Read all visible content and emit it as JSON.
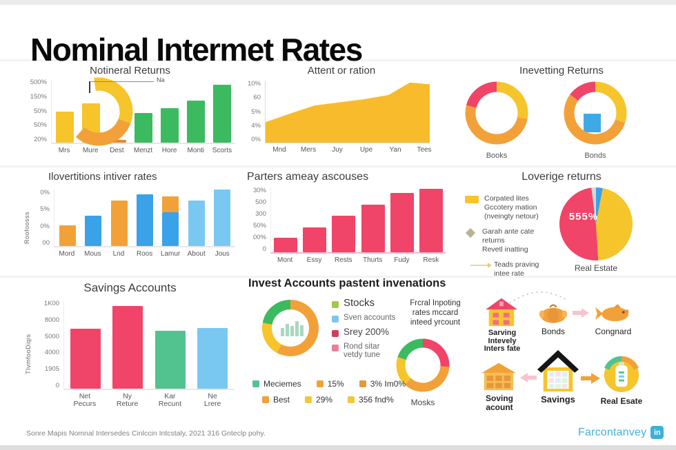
{
  "page": {
    "title": "Nominal Intermet Rates",
    "footer": {
      "source": "Sonre Mapis Nomnal Intersedes Cinlccin Intcstaly, 2021 316 Gnteclp pohy.",
      "brand": "Farcontanvey",
      "brand_badge": "in"
    }
  },
  "colors": {
    "yellow": "#F6C52C",
    "orange": "#F2A138",
    "deep_orange": "#E2873A",
    "green": "#3CBA60",
    "teal_green": "#52C28F",
    "blue": "#3AA2E8",
    "light_blue": "#79C8F2",
    "pink": "#F04568",
    "area_yellow": "#F8BB2B",
    "crimson": "#D23E5E",
    "rose": "#EA8098",
    "lime": "#A3C84A",
    "gray_diamond": "#B9B29B",
    "light_gray": "#D8D8D8",
    "brand_blue": "#41B4D9"
  },
  "chart_data": [
    {
      "id": "notineral",
      "type": "bar",
      "title": "Notineral Returns",
      "yticks": [
        "500%",
        "150%",
        "50%",
        "50%",
        "20%"
      ],
      "categories": [
        "Mrs",
        "Mure",
        "Dest",
        "Menzt",
        "Hore",
        "Monti",
        "Scorts"
      ],
      "values": [
        49,
        62,
        4,
        47,
        54,
        66,
        91
      ],
      "bar_colors": [
        "yellow",
        "yellow",
        "deep_orange",
        "green",
        "green",
        "green",
        "green"
      ],
      "annotation": "Na",
      "overlay": {
        "shape": "donut-arc",
        "segments": [
          {
            "color": "yellow",
            "deg": 118
          },
          {
            "color": "orange",
            "deg": 112
          }
        ]
      }
    },
    {
      "id": "attent",
      "type": "area",
      "title": "Attent or ration",
      "yticks": [
        "10%",
        "60",
        "5%",
        "4%",
        "0%"
      ],
      "categories": [
        "Mnd",
        "Mers",
        "Juy",
        "Upe",
        "Yan",
        "Tees"
      ],
      "points_x": [
        0,
        15,
        30,
        45,
        60,
        75,
        88,
        100
      ],
      "points_h": [
        33,
        47,
        60,
        65,
        70,
        77,
        97,
        94
      ],
      "color": "area_yellow"
    },
    {
      "id": "inevetting",
      "type": "donut-pair",
      "title": "Inevetting Returns",
      "donuts": [
        {
          "label": "Books",
          "segments": [
            {
              "color": "yellow",
              "value": 28
            },
            {
              "color": "orange",
              "value": 51
            },
            {
              "color": "pink",
              "value": 21
            }
          ]
        },
        {
          "label": "Bonds",
          "segments": [
            {
              "color": "yellow",
              "value": 30
            },
            {
              "color": "orange",
              "value": 55
            },
            {
              "color": "pink",
              "value": 15
            }
          ],
          "inner_marker": "blue-square"
        }
      ]
    },
    {
      "id": "ilovertitions",
      "type": "bar",
      "title": "Ilovertitions intiver rates",
      "ylabel": "Roofoosss",
      "yticks": [
        "0%",
        "5%",
        "0%",
        "00"
      ],
      "categories": [
        "Mord",
        "Mous",
        "Lnd",
        "Roos",
        "Lamur",
        "About",
        "Jous"
      ],
      "values": [
        37,
        54,
        80,
        91,
        60,
        80,
        100
      ],
      "stack_values": [
        0,
        0,
        0,
        0,
        28,
        0,
        0
      ],
      "bar_colors": [
        "orange",
        "blue",
        "orange",
        "blue",
        "blue",
        "light_blue",
        "light_blue"
      ],
      "stack_colors": [
        "",
        "",
        "",
        "",
        "orange",
        "",
        ""
      ]
    },
    {
      "id": "parters",
      "type": "bar",
      "title": "Parters ameay ascouses",
      "yticks": [
        "30%",
        "500",
        "300",
        "50%",
        "00%",
        "0"
      ],
      "categories": [
        "Mont",
        "Essy",
        "Rests",
        "Thurts",
        "Fudy",
        "Resk"
      ],
      "values": [
        22,
        38,
        56,
        73,
        91,
        98
      ],
      "bar_colors": [
        "pink",
        "pink",
        "pink",
        "pink",
        "pink",
        "pink"
      ]
    },
    {
      "id": "loverige",
      "type": "pie",
      "title": "Loverige returns",
      "legend": [
        {
          "marker": "square",
          "color": "#F6C52C",
          "lines": [
            "Corpated lites",
            "Gccotery mation",
            "(nveingty netour)"
          ]
        },
        {
          "marker": "diamond",
          "color": "#B9B29B",
          "lines": [
            "Garah ante cate",
            "returns",
            "Revetl inatting"
          ]
        },
        {
          "marker": "line",
          "color": "#EAD98C",
          "lines": [
            "Teads praving",
            "intee rate"
          ]
        }
      ],
      "segments": [
        {
          "color": "blue",
          "value": 3
        },
        {
          "color": "yellow",
          "value": 46
        },
        {
          "color": "pink",
          "value": 49
        },
        {
          "color": "light_gray",
          "value": 2
        }
      ],
      "center_label": "555%",
      "caption": "Real Estate"
    },
    {
      "id": "savings",
      "type": "bar",
      "title": "Savings Accounts",
      "ylabel": "TIvmfooDiqis",
      "yticks": [
        "1K00",
        "8000",
        "5000",
        "4000",
        "1905",
        "0"
      ],
      "categories": [
        "Net Pecurs",
        "Ny Reture",
        "Kar Recunt",
        "Ne Lrere"
      ],
      "values": [
        68,
        94,
        66,
        69
      ],
      "bar_colors": [
        "pink",
        "pink",
        "teal_green",
        "light_blue"
      ]
    },
    {
      "id": "invest",
      "type": "donut-composite",
      "title": "Invest Accounts pastent invenations",
      "left_donut": {
        "segments": [
          {
            "color": "orange",
            "value": 58
          },
          {
            "color": "yellow",
            "value": 20
          },
          {
            "color": "green",
            "value": 22
          }
        ],
        "inner_icon": "mini-bar-chart"
      },
      "legend": [
        {
          "color": "#A3C84A",
          "label": "Stocks"
        },
        {
          "color": "#79C8F2",
          "label": "Sven accounts"
        },
        {
          "color": "#D23E5E",
          "label": "Srey 200%"
        },
        {
          "color": "#EA8098",
          "label": "Rond sitar vetdy tune"
        }
      ],
      "note_lines": [
        "Frcral Inpoting",
        "rates mccard",
        "inteed yrcount"
      ],
      "right_donut": {
        "label": "Mosks",
        "segments": [
          {
            "color": "pink",
            "value": 26
          },
          {
            "color": "orange",
            "value": 36
          },
          {
            "color": "yellow",
            "value": 18
          },
          {
            "color": "green",
            "value": 20
          }
        ]
      },
      "bottom_legend": [
        [
          {
            "color": "#52C28F",
            "label": "Meciemes"
          },
          {
            "color": "#F2A138",
            "label": "15%"
          },
          {
            "color": "#E09A40",
            "label": "3% Im0%"
          }
        ],
        [
          {
            "color": "#F2A138",
            "label": "Best"
          },
          {
            "color": "#F2C73C",
            "label": "29%"
          },
          {
            "color": "#F2C73C",
            "label": "356 fnd%"
          }
        ]
      ]
    },
    {
      "id": "icons",
      "type": "icon-diagram",
      "items": [
        {
          "icon": "house-pink",
          "label_lines": [
            "Sarving",
            "Intevely",
            "Inters fate"
          ]
        },
        {
          "icon": "piggy-bank",
          "label_lines": [
            "Bonds"
          ]
        },
        {
          "icon": "goldfish",
          "label_lines": [
            "Congnard"
          ]
        },
        {
          "icon": "house-orange",
          "label_lines": [
            "Soving",
            "acount"
          ]
        },
        {
          "icon": "house-black-roof",
          "label_lines": [
            "Savings"
          ]
        },
        {
          "icon": "money-jar",
          "label_lines": [
            "Real Esate"
          ]
        }
      ]
    }
  ]
}
